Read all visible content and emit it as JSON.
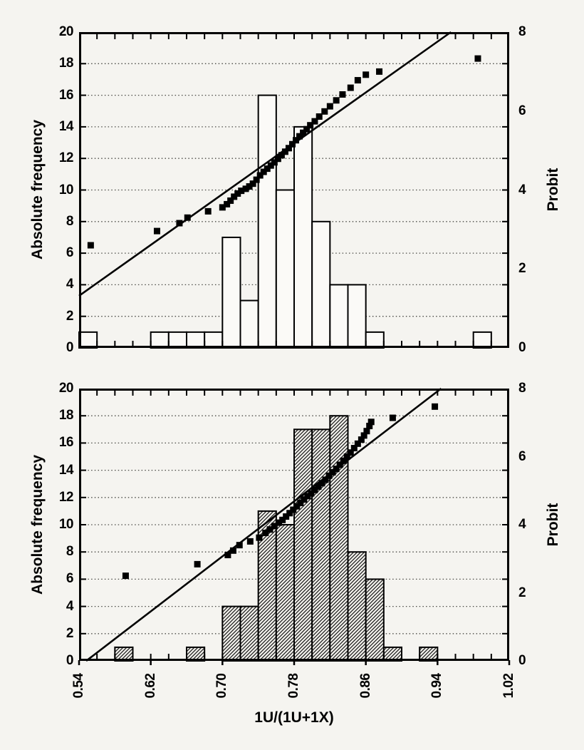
{
  "figure": {
    "description": "Two stacked histogram panels with probit plots and fitted lines",
    "background": "#f5f4f0"
  },
  "colors": {
    "ink": "#000000",
    "grid": "#4a4a45",
    "bar_fill_white": "#fbfaf7",
    "hatch_background": "#f2f1ec",
    "hatch_line": "#181818"
  },
  "axes": {
    "x": {
      "label": "1U/(1U+1X)",
      "min": 0.54,
      "max": 1.02,
      "tick_values": [
        0.54,
        0.62,
        0.7,
        0.78,
        0.86,
        0.94,
        1.02
      ],
      "tick_labels": [
        "0.54",
        "0.62",
        "0.70",
        "0.78",
        "0.86",
        "0.94",
        "1.02"
      ],
      "minor_tick_step": 0.02
    },
    "y_left": {
      "label": "Absolute frequency",
      "min": 0,
      "max": 20,
      "tick_labels": [
        0,
        2,
        4,
        6,
        8,
        10,
        12,
        14,
        16,
        18,
        20
      ],
      "gridlines": [
        2,
        4,
        6,
        8,
        10,
        12,
        14,
        16,
        18
      ]
    },
    "y_right": {
      "label": "Probit",
      "min": 0,
      "max": 8,
      "tick_labels": [
        0,
        2,
        4,
        6,
        8
      ]
    }
  },
  "chart_data": [
    {
      "name": "top-panel",
      "type": "bar",
      "subtype": "histogram-with-probit-points-and-fit-line",
      "bar_fill": "white",
      "x_bin_start": 0.54,
      "x_bin_width": 0.02,
      "bin_edges_note": "24 bins from 0.54 to 1.02",
      "bins": [
        1,
        0,
        0,
        0,
        1,
        1,
        1,
        1,
        7,
        3,
        16,
        10,
        14,
        8,
        4,
        4,
        1,
        0,
        0,
        0,
        0,
        0,
        1,
        0
      ],
      "ylim_freq": [
        0,
        20
      ],
      "ylim_probit": [
        0,
        8
      ],
      "fit_line": {
        "x1": 0.54,
        "p1": 1.32,
        "x2": 0.955,
        "p2": 8.0
      },
      "probit_points": [
        [
          0.553,
          2.6
        ],
        [
          0.627,
          2.96
        ],
        [
          0.652,
          3.16
        ],
        [
          0.661,
          3.3
        ],
        [
          0.684,
          3.46
        ],
        [
          0.7,
          3.56
        ],
        [
          0.705,
          3.64
        ],
        [
          0.709,
          3.73
        ],
        [
          0.713,
          3.83
        ],
        [
          0.717,
          3.91
        ],
        [
          0.721,
          3.98
        ],
        [
          0.726,
          4.03
        ],
        [
          0.73,
          4.09
        ],
        [
          0.734,
          4.16
        ],
        [
          0.738,
          4.26
        ],
        [
          0.742,
          4.37
        ],
        [
          0.746,
          4.46
        ],
        [
          0.75,
          4.54
        ],
        [
          0.754,
          4.62
        ],
        [
          0.758,
          4.7
        ],
        [
          0.762,
          4.79
        ],
        [
          0.766,
          4.88
        ],
        [
          0.77,
          4.97
        ],
        [
          0.774,
          5.06
        ],
        [
          0.778,
          5.16
        ],
        [
          0.782,
          5.26
        ],
        [
          0.786,
          5.36
        ],
        [
          0.79,
          5.45
        ],
        [
          0.794,
          5.54
        ],
        [
          0.798,
          5.64
        ],
        [
          0.803,
          5.74
        ],
        [
          0.808,
          5.86
        ],
        [
          0.814,
          5.99
        ],
        [
          0.82,
          6.12
        ],
        [
          0.827,
          6.27
        ],
        [
          0.834,
          6.42
        ],
        [
          0.843,
          6.59
        ],
        [
          0.851,
          6.78
        ],
        [
          0.86,
          6.92
        ],
        [
          0.875,
          7.0
        ],
        [
          0.985,
          7.33
        ]
      ]
    },
    {
      "name": "bottom-panel",
      "type": "bar",
      "subtype": "histogram-with-probit-points-and-fit-line",
      "bar_fill": "hatched",
      "x_bin_start": 0.54,
      "x_bin_width": 0.02,
      "bin_edges_note": "24 bins from 0.54 to 1.02",
      "bins": [
        0,
        0,
        1,
        0,
        0,
        0,
        1,
        0,
        4,
        4,
        11,
        10,
        17,
        17,
        18,
        8,
        6,
        1,
        0,
        1,
        0,
        0,
        0,
        0
      ],
      "ylim_freq": [
        0,
        20
      ],
      "ylim_probit": [
        0,
        8
      ],
      "fit_line": {
        "x1": 0.548,
        "p1": 0.0,
        "x2": 0.944,
        "p2": 8.0
      },
      "probit_points": [
        [
          0.592,
          2.5
        ],
        [
          0.672,
          2.84
        ],
        [
          0.706,
          3.11
        ],
        [
          0.712,
          3.24
        ],
        [
          0.719,
          3.4
        ],
        [
          0.731,
          3.51
        ],
        [
          0.741,
          3.62
        ],
        [
          0.748,
          3.76
        ],
        [
          0.753,
          3.86
        ],
        [
          0.758,
          3.96
        ],
        [
          0.763,
          4.06
        ],
        [
          0.767,
          4.14
        ],
        [
          0.771,
          4.24
        ],
        [
          0.775,
          4.34
        ],
        [
          0.779,
          4.44
        ],
        [
          0.783,
          4.54
        ],
        [
          0.787,
          4.64
        ],
        [
          0.791,
          4.74
        ],
        [
          0.795,
          4.84
        ],
        [
          0.799,
          4.92
        ],
        [
          0.803,
          5.02
        ],
        [
          0.807,
          5.12
        ],
        [
          0.811,
          5.22
        ],
        [
          0.815,
          5.32
        ],
        [
          0.819,
          5.44
        ],
        [
          0.823,
          5.54
        ],
        [
          0.827,
          5.64
        ],
        [
          0.831,
          5.76
        ],
        [
          0.835,
          5.88
        ],
        [
          0.839,
          6.0
        ],
        [
          0.843,
          6.12
        ],
        [
          0.847,
          6.25
        ],
        [
          0.851,
          6.38
        ],
        [
          0.855,
          6.5
        ],
        [
          0.858,
          6.62
        ],
        [
          0.861,
          6.75
        ],
        [
          0.864,
          6.9
        ],
        [
          0.866,
          7.02
        ],
        [
          0.89,
          7.14
        ],
        [
          0.937,
          7.47
        ]
      ]
    }
  ]
}
